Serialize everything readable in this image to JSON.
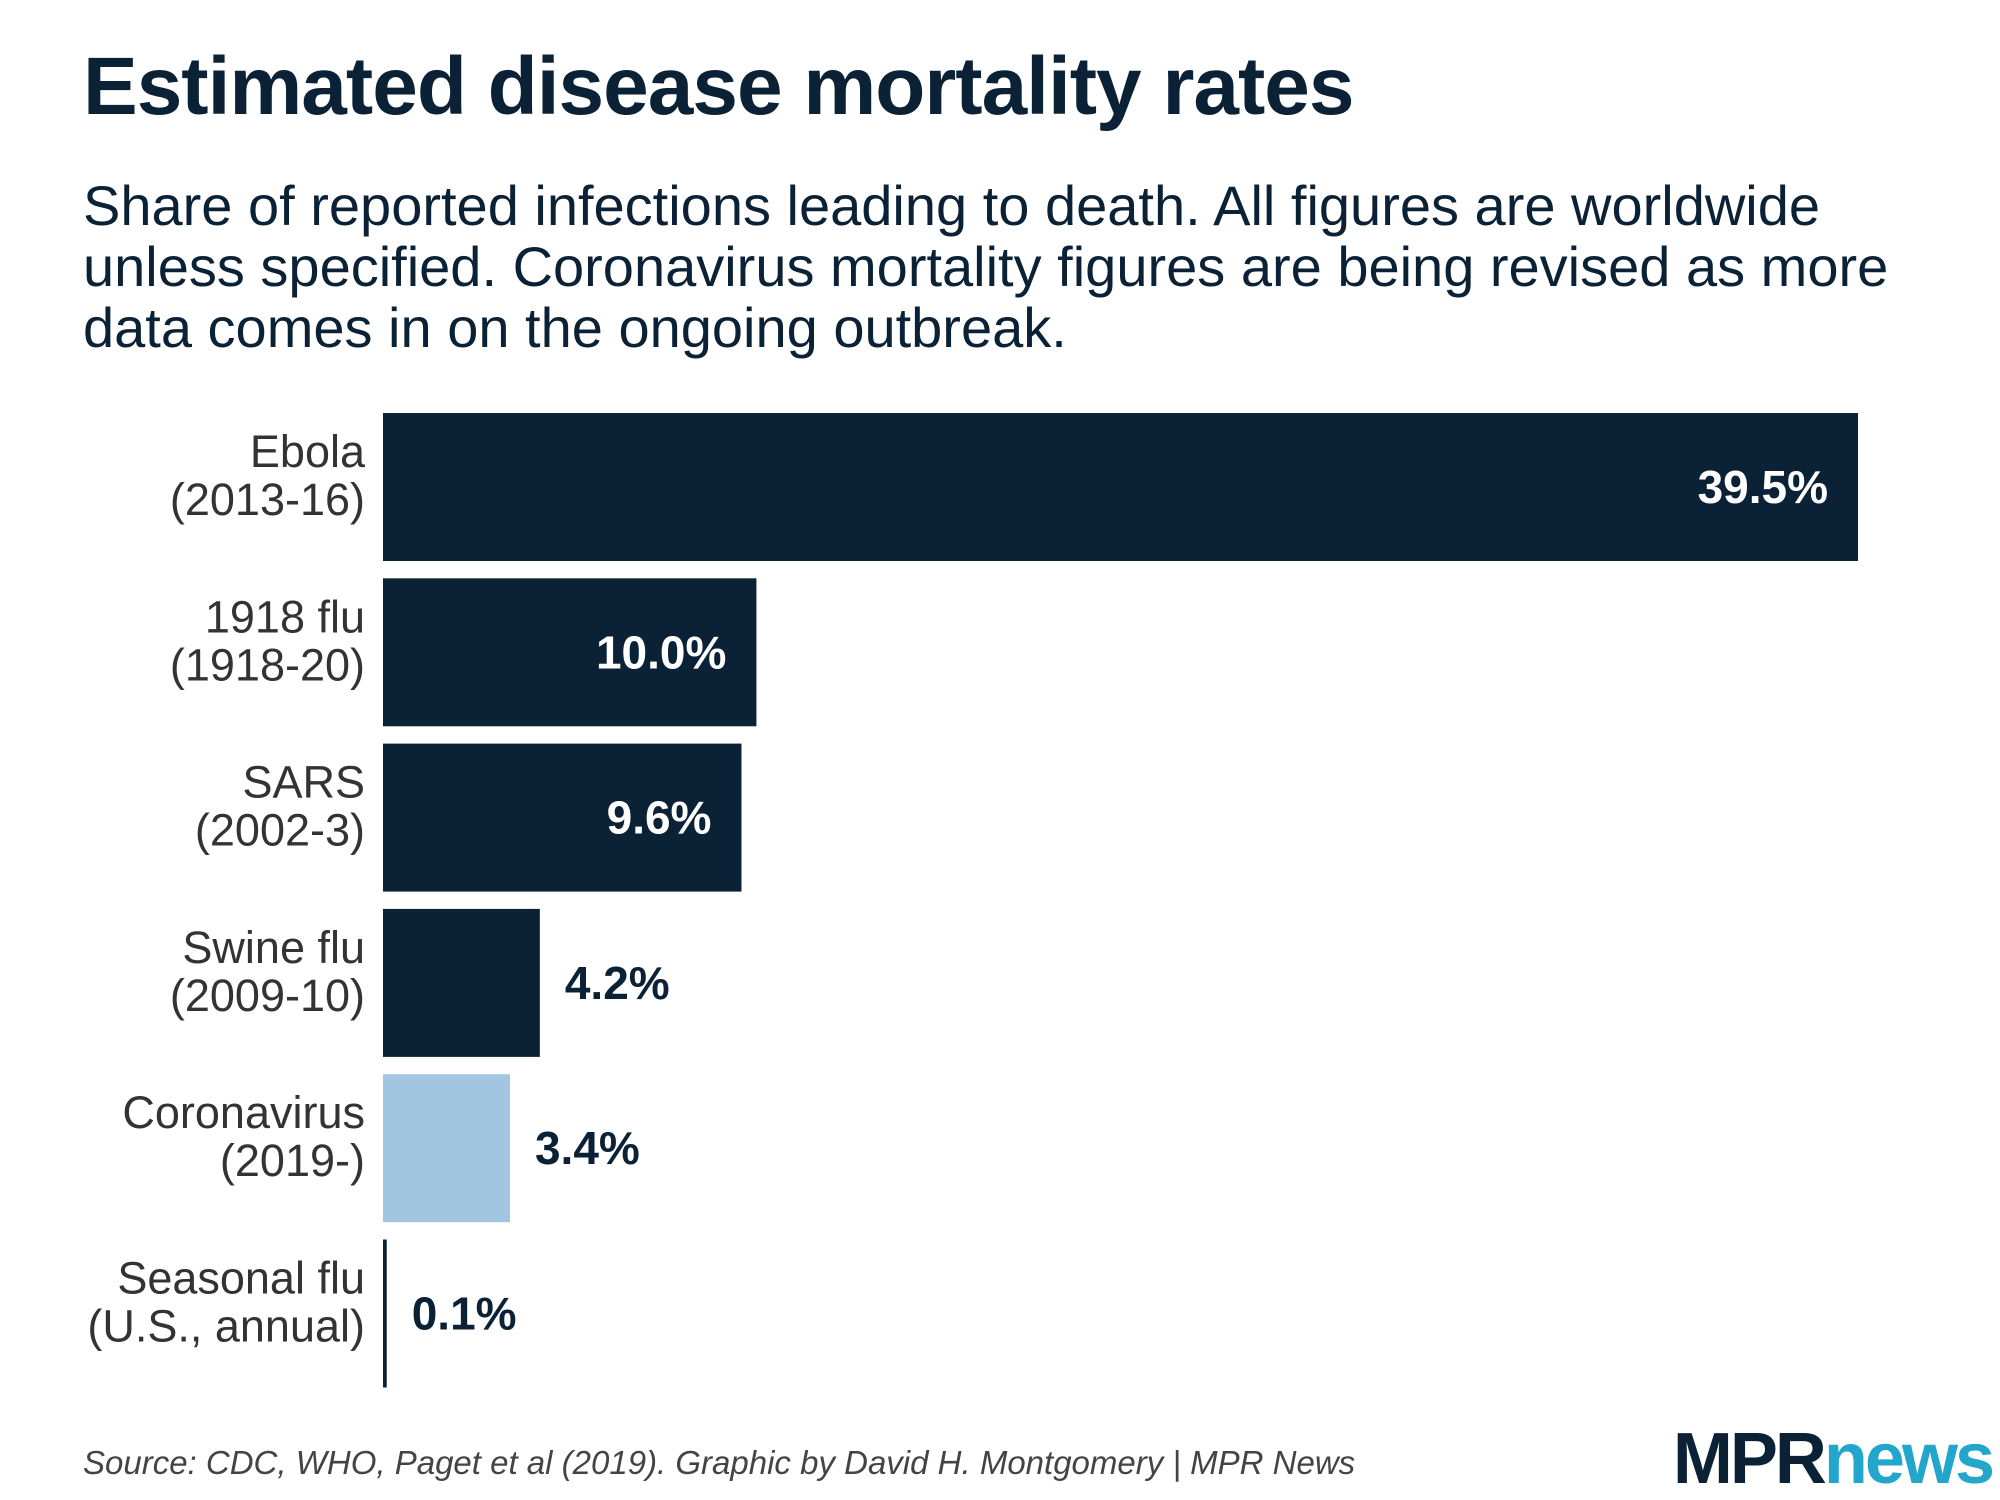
{
  "header": {
    "title": "Estimated disease mortality rates",
    "subtitle": "Share of reported infections leading to death. All figures are worldwide unless specified. Coronavirus mortality figures are being revised as more data comes in on the ongoing outbreak."
  },
  "footer": {
    "source": "Source: CDC, WHO, Paget et al (2019). Graphic by David H. Montgomery | MPR News",
    "logo_mpr": "MPR",
    "logo_news": "news"
  },
  "colors": {
    "primary": "#0b2236",
    "highlight": "#a3c6e0",
    "logo_news": "#23a6cc"
  },
  "chart_data": {
    "type": "bar",
    "orientation": "horizontal",
    "categories": [
      [
        "Ebola",
        "(2013-16)"
      ],
      [
        "1918 flu",
        "(1918-20)"
      ],
      [
        "SARS",
        "(2002-3)"
      ],
      [
        "Swine flu",
        "(2009-10)"
      ],
      [
        "Coronavirus",
        "(2019-)"
      ],
      [
        "Seasonal flu",
        "(U.S., annual)"
      ]
    ],
    "values": [
      39.5,
      10.0,
      9.6,
      4.2,
      3.4,
      0.1
    ],
    "value_labels": [
      "39.5%",
      "10.0%",
      "9.6%",
      "4.2%",
      "3.4%",
      "0.1%"
    ],
    "bar_colors": [
      "#0b2236",
      "#0b2236",
      "#0b2236",
      "#0b2236",
      "#a3c6e0",
      "#0b2236"
    ],
    "xlim": [
      0,
      39.5
    ],
    "grid": false,
    "legend": "none"
  }
}
